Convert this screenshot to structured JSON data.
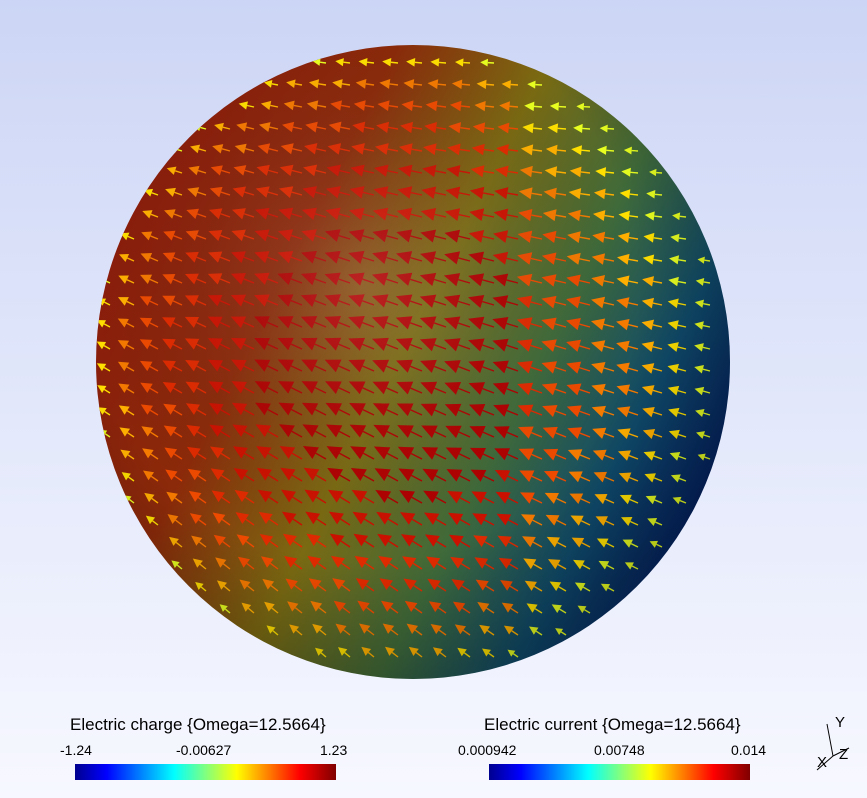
{
  "legend_charge": {
    "title": "Electric charge {Omega=12.5664}",
    "min": "-1.24",
    "mid": "-0.00627",
    "max": "1.23"
  },
  "legend_current": {
    "title": "Electric current {Omega=12.5664}",
    "min": "0.000942",
    "mid": "0.00748",
    "max": "0.014"
  },
  "axes": {
    "y": "Y",
    "x": "X",
    "z": "Z"
  }
}
